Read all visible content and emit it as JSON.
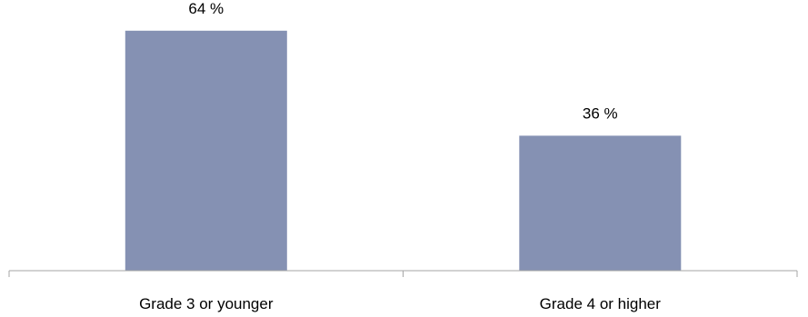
{
  "chart_data": {
    "type": "bar",
    "categories": [
      "Grade 3 or younger",
      "Grade 4 or higher"
    ],
    "values": [
      64,
      36
    ],
    "value_labels": [
      "64 %",
      "36 %"
    ],
    "ylim": [
      0,
      70
    ],
    "grid": false,
    "legend": "none",
    "colors": {
      "bar": "#8591b3",
      "axis": "#a6a6a6",
      "text": "#000000"
    }
  }
}
